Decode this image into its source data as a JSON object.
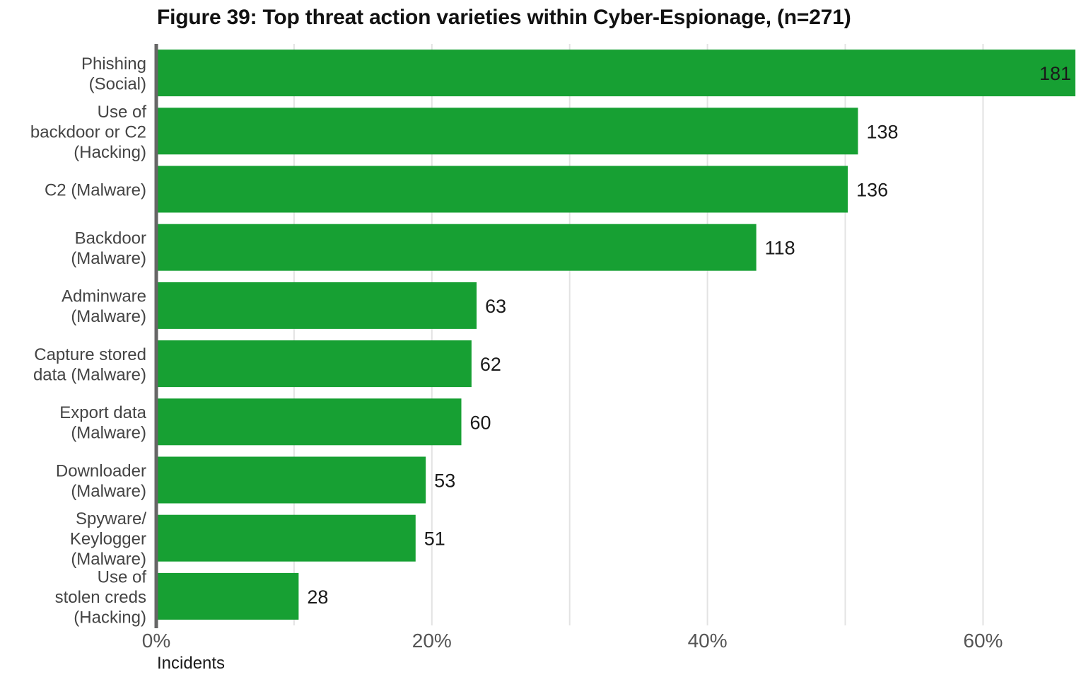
{
  "chart_data": {
    "type": "bar",
    "orientation": "horizontal",
    "title": "Figure 39: Top threat action varieties within Cyber-Espionage, (n=271)",
    "xlabel": "Incidents",
    "ylabel": "",
    "n": 271,
    "categories": [
      [
        "Phishing",
        "(Social)"
      ],
      [
        "Use of",
        "backdoor or C2",
        "(Hacking)"
      ],
      [
        "C2 (Malware)"
      ],
      [
        "Backdoor",
        "(Malware)"
      ],
      [
        "Adminware",
        "(Malware)"
      ],
      [
        "Capture stored",
        "data (Malware)"
      ],
      [
        "Export data",
        "(Malware)"
      ],
      [
        "Downloader",
        "(Malware)"
      ],
      [
        "Spyware/",
        "Keylogger",
        "(Malware)"
      ],
      [
        "Use of",
        "stolen creds",
        "(Hacking)"
      ]
    ],
    "values": [
      181,
      138,
      136,
      118,
      63,
      62,
      60,
      53,
      51,
      28
    ],
    "x_ticks": [
      "0%",
      "20%",
      "40%",
      "60%"
    ],
    "xlim": [
      0,
      0.667
    ],
    "grid": "vertical",
    "bar_color": "#17a033",
    "grid_color": "#e3e3e3",
    "axis_color": "#666666"
  }
}
